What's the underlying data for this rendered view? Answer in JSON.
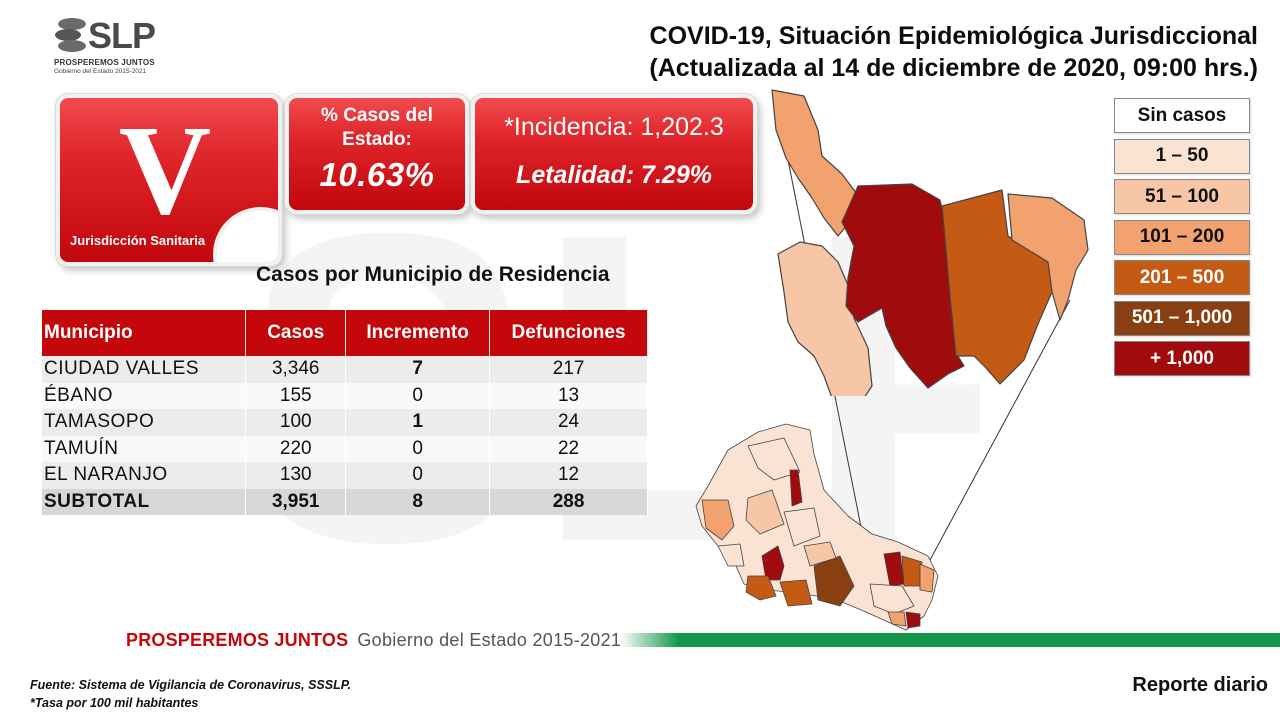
{
  "logo": {
    "wordmark": "SLP",
    "tagline": "PROSPEREMOS JUNTOS",
    "subline": "Gobierno del Estado 2015-2021"
  },
  "header": {
    "title_line1": "COVID-19, Situación Epidemiológica Jurisdiccional",
    "title_line2": "(Actualizada al 14 de diciembre de 2020, 09:00 hrs.)"
  },
  "jurisdiction": {
    "numeral": "V",
    "label": "Jurisdicción Sanitaria"
  },
  "stats": {
    "pct_label": "% Casos del Estado:",
    "pct_value": "10.63%",
    "incidencia": "*Incidencia: 1,202.3",
    "letalidad": "Letalidad: 7.29%"
  },
  "table": {
    "title": "Casos por Municipio  de Residencia",
    "headers": [
      "Municipio",
      "Casos",
      "Incremento",
      "Defunciones"
    ],
    "rows": [
      [
        "CIUDAD VALLES",
        "3,346",
        "7",
        "217"
      ],
      [
        "ÉBANO",
        "155",
        "0",
        "13"
      ],
      [
        "TAMASOPO",
        "100",
        "1",
        "24"
      ],
      [
        "TAMUÍN",
        "220",
        "0",
        "22"
      ],
      [
        "EL NARANJO",
        "130",
        "0",
        "12"
      ]
    ],
    "subtotal": [
      "SUBTOTAL",
      "3,951",
      "8",
      "288"
    ]
  },
  "legend": [
    {
      "label": "Sin casos",
      "color": "#ffffff",
      "text_color": "#111111"
    },
    {
      "label": "1 – 50",
      "color": "#fbe3d4",
      "text_color": "#111111"
    },
    {
      "label": "51 – 100",
      "color": "#f6c6a6",
      "text_color": "#111111"
    },
    {
      "label": "101 – 200",
      "color": "#f1a26e",
      "text_color": "#111111"
    },
    {
      "label": "201 – 500",
      "color": "#c45a13",
      "text_color": "#ffffff"
    },
    {
      "label": "501 – 1,000",
      "color": "#8a3f12",
      "text_color": "#ffffff"
    },
    {
      "label": "+ 1,000",
      "color": "#a00c0e",
      "text_color": "#ffffff"
    }
  ],
  "footer": {
    "brand": "PROSPEREMOS JUNTOS",
    "gov": "Gobierno del Estado 2015-2021",
    "source_line1": "Fuente: Sistema de Vigilancia de Coronavirus, SSSLP.",
    "source_line2": "*Tasa por 100 mil habitantes",
    "report": "Reporte diario"
  },
  "colors": {
    "accent_red": "#c3070b",
    "brand_green": "#119447"
  }
}
